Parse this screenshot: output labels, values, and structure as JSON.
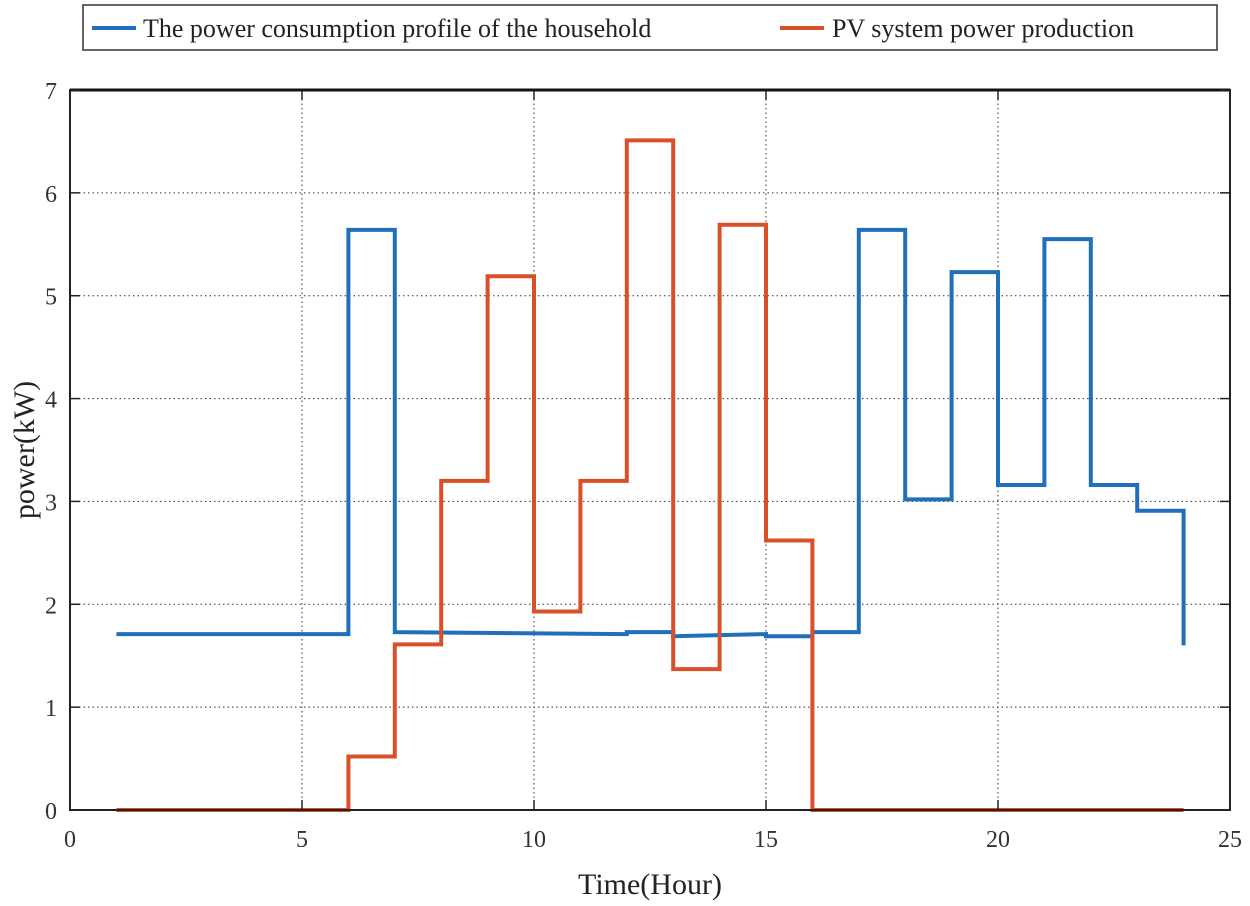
{
  "chart_data": {
    "type": "line",
    "step": true,
    "title": "",
    "xlabel": "Time(Hour)",
    "ylabel": "power(kW)",
    "xlim": [
      0,
      25
    ],
    "ylim": [
      0,
      7
    ],
    "xticks": [
      0,
      5,
      10,
      15,
      20,
      25
    ],
    "yticks": [
      0,
      1,
      2,
      3,
      4,
      5,
      6,
      7
    ],
    "grid": "dotted",
    "legend_position": "top",
    "series": [
      {
        "name": "The power consumption profile of the household",
        "color": "#1f6fba",
        "x": [
          1,
          6,
          6,
          7,
          7,
          12,
          12,
          13,
          13,
          15,
          15,
          16,
          16,
          17,
          17,
          18,
          18,
          19,
          19,
          20,
          20,
          21,
          21,
          22,
          22,
          23,
          23,
          24,
          24
        ],
        "y": [
          1.71,
          1.71,
          5.64,
          5.64,
          1.73,
          1.71,
          1.73,
          1.73,
          1.69,
          1.71,
          1.69,
          1.69,
          1.73,
          1.73,
          5.64,
          5.64,
          3.02,
          3.02,
          5.23,
          5.23,
          3.16,
          3.16,
          5.55,
          5.55,
          3.16,
          3.16,
          2.91,
          2.91,
          1.6
        ]
      },
      {
        "name": "PV system power production",
        "color": "#d94f27",
        "x": [
          1,
          6,
          6,
          7,
          7,
          8,
          8,
          9,
          9,
          10,
          10,
          11,
          11,
          12,
          12,
          13,
          13,
          14,
          14,
          15,
          15,
          16,
          16,
          24
        ],
        "y": [
          0,
          0,
          0.52,
          0.52,
          1.61,
          1.61,
          3.2,
          3.2,
          5.19,
          5.19,
          1.93,
          1.93,
          3.2,
          3.2,
          6.51,
          6.51,
          1.37,
          1.37,
          5.69,
          5.69,
          2.62,
          2.62,
          0,
          0
        ]
      }
    ]
  }
}
